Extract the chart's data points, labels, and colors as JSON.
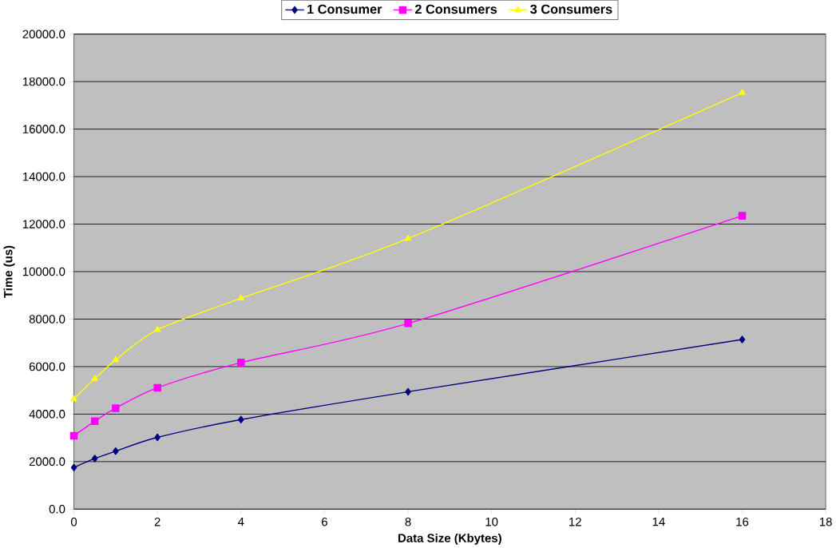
{
  "chart_data": {
    "type": "line",
    "xlabel": "Data Size (Kbytes)",
    "ylabel": "Time (us)",
    "x": [
      0,
      0.5,
      1,
      2,
      4,
      8,
      16
    ],
    "series": [
      {
        "name": "1 Consumer",
        "color": "#000080",
        "marker": "diamond",
        "values": [
          1750,
          2130,
          2440,
          3020,
          3770,
          4940,
          7140
        ]
      },
      {
        "name": "2 Consumers",
        "color": "#ff00ff",
        "marker": "square",
        "values": [
          3090,
          3700,
          4250,
          5110,
          6170,
          7820,
          12350
        ]
      },
      {
        "name": "3 Consumers",
        "color": "#ffff00",
        "marker": "triangle",
        "values": [
          4630,
          5490,
          6280,
          7550,
          8880,
          11390,
          17530
        ]
      }
    ],
    "xlim": [
      0,
      18
    ],
    "xticks": [
      0,
      2,
      4,
      6,
      8,
      10,
      12,
      14,
      16,
      18
    ],
    "ylim": [
      0,
      20000
    ],
    "yticks": [
      {
        "value": 0,
        "label": "0.0"
      },
      {
        "value": 2000,
        "label": "2000.0"
      },
      {
        "value": 4000,
        "label": "4000.0"
      },
      {
        "value": 6000,
        "label": "6000.0"
      },
      {
        "value": 8000,
        "label": "8000.0"
      },
      {
        "value": 10000,
        "label": "10000.0"
      },
      {
        "value": 12000,
        "label": "12000.0"
      },
      {
        "value": 14000,
        "label": "14000.0"
      },
      {
        "value": 16000,
        "label": "16000.0"
      },
      {
        "value": 18000,
        "label": "18000.0"
      },
      {
        "value": 20000,
        "label": "20000.0"
      }
    ],
    "grid": "y",
    "legend": "top",
    "line_style": "solid"
  }
}
